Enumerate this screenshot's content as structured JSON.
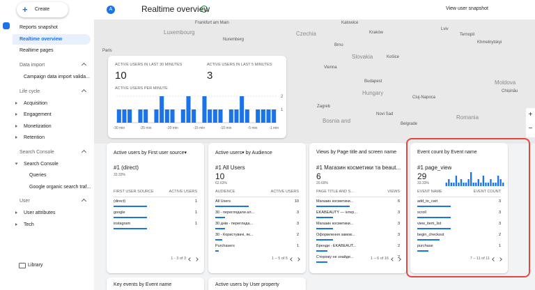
{
  "nav": {
    "create_button": "Create",
    "top_items": [
      "Reports snapshot",
      "Realtime overview",
      "Realtime pages"
    ],
    "sections": [
      {
        "title": "Data import",
        "items": [
          "Campaign data import valida..."
        ]
      },
      {
        "title": "Life cycle",
        "items": [
          "Acquisition",
          "Engagement",
          "Monetization",
          "Retention"
        ]
      },
      {
        "title": "Search Console",
        "items": [
          "Search Console",
          "Queries",
          "Google organic search traf..."
        ]
      },
      {
        "title": "User",
        "items": [
          "User attributes",
          "Tech"
        ]
      }
    ],
    "library": "Library"
  },
  "header": {
    "avatar": "A",
    "title": "Realtime overview",
    "snapshot": "View user snapshot"
  },
  "map": {
    "labels": [
      "Luxembourg",
      "Frankfurt am Main",
      "Paris",
      "Nuremberg",
      "Czechia",
      "Brno",
      "Katowice",
      "Kraków",
      "Lviv",
      "Ternopil",
      "Khmelnytskyi",
      "Slovakia",
      "Košice",
      "Vienna",
      "Budapest",
      "Hungary",
      "Moldova",
      "Cluj-Napoca",
      "Chișinău",
      "Zagreb",
      "Romania",
      "Bosnia and",
      "Novi Sad",
      "Belgrade"
    ]
  },
  "realtime": {
    "label_30": "ACTIVE USERS IN LAST 30 MINUTES",
    "value_30": 10,
    "label_5": "ACTIVE USERS IN LAST 5 MINUTES",
    "value_5": 3,
    "chart_title": "ACTIVE USERS PER MINUTE",
    "values": [
      1,
      1,
      1,
      0,
      1,
      1,
      0,
      1,
      2,
      1,
      1,
      0,
      1,
      2,
      1,
      0,
      2,
      1,
      1,
      1,
      0,
      1,
      1,
      2,
      1,
      0,
      1,
      1,
      1,
      1
    ],
    "ylim": [
      0,
      2
    ],
    "yticks": [
      1,
      2
    ],
    "x_labels": [
      "-30 min",
      "-25 min",
      "-20 min",
      "-15 min",
      "-10 min",
      "-5 min",
      "-1 min"
    ]
  },
  "cards": [
    {
      "title": "Active users by First user source▾",
      "top": "#1  (direct)",
      "percent": "33.33%",
      "col1": "FIRST USER SOURCE",
      "col2": "ACTIVE USERS",
      "rows": [
        [
          "(direct)",
          1
        ],
        [
          "google",
          1
        ],
        [
          "instagram",
          1
        ]
      ],
      "footer": "1 - 3 of 3"
    },
    {
      "title": "Active users▾ by Audience",
      "top": "#1  All Users",
      "value": 10,
      "percent": "62.63%",
      "col1": "AUDIENCE",
      "col2": "ACTIVE USERS",
      "rows": [
        [
          "All Users",
          10
        ],
        [
          "30 - переглядали ал...",
          3
        ],
        [
          "30 днів - переглада...",
          3
        ],
        [
          "30 - Користувачі, як...",
          2
        ],
        [
          "Purchasers",
          1
        ]
      ],
      "footer": "1 – 5 of 5"
    },
    {
      "title": "Views by Page title and screen name",
      "top": "#1  Магазин косметики та beaut...",
      "value": 6,
      "percent": "20.69%",
      "col1": "PAGE TITLE AND S...",
      "col2": "VIEWS",
      "rows": [
        [
          "Магазин косметики...",
          6
        ],
        [
          "EKABEAUTY — інтер...",
          3
        ],
        [
          "Магазин косметики...",
          3
        ],
        [
          "Оформлення замов...",
          3
        ],
        [
          "Бренди - EKABEAUT...",
          2
        ],
        [
          "Сторінку не знайде...",
          2
        ]
      ],
      "footer": "1 – 6 of 16"
    },
    {
      "title": "Event count by Event name",
      "top": "#1  page_view",
      "value": 29,
      "percent": "33.33%",
      "sparkline": [
        1,
        2,
        1,
        1,
        3,
        1,
        2,
        1,
        1,
        2,
        4,
        1,
        1,
        2,
        1,
        3,
        1,
        1,
        2,
        1,
        1,
        3,
        2,
        1
      ],
      "col1": "EVENT NAME",
      "col2": "EVENT COUNT",
      "rows": [
        [
          "add_to_cart",
          3
        ],
        [
          "scroll",
          3
        ],
        [
          "view_item_list",
          3
        ],
        [
          "begin_checkout",
          2
        ],
        [
          "purchase",
          1
        ]
      ],
      "footer": "7 – 11 of 11"
    }
  ],
  "lower_cards": [
    "Key events by Event name",
    "Active users by User property"
  ]
}
